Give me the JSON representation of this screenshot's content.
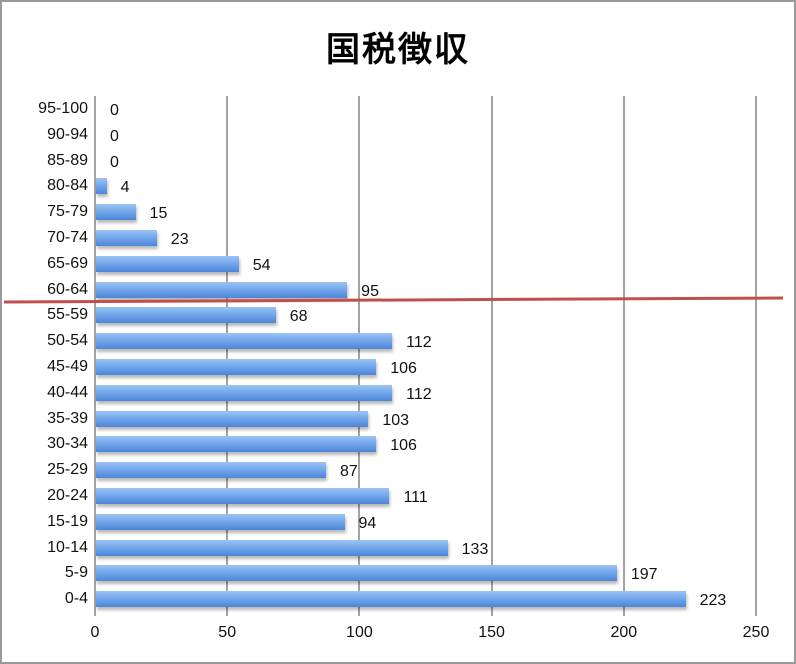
{
  "chart_data": {
    "type": "bar",
    "orientation": "horizontal",
    "title": "国税徴収",
    "xlabel": "",
    "ylabel": "",
    "xlim": [
      0,
      250
    ],
    "x_ticks": [
      0,
      50,
      100,
      150,
      200,
      250
    ],
    "grid": "vertical",
    "legend": "none",
    "data_labels": true,
    "categories": [
      "0-4",
      "5-9",
      "10-14",
      "15-19",
      "20-24",
      "25-29",
      "30-34",
      "35-39",
      "40-44",
      "45-49",
      "50-54",
      "55-59",
      "60-64",
      "65-69",
      "70-74",
      "75-79",
      "80-84",
      "85-89",
      "90-94",
      "95-100"
    ],
    "values": [
      223,
      197,
      133,
      94,
      111,
      87,
      106,
      103,
      112,
      106,
      112,
      68,
      95,
      54,
      23,
      15,
      4,
      0,
      0,
      0
    ],
    "bar_color": "#5b93e0",
    "annotations": [
      {
        "type": "horizontal-line",
        "color": "#c0504d",
        "position": "between 60-64 and 55-59",
        "description": "red divider line"
      }
    ]
  },
  "colors": {
    "bar": "#5b93e0",
    "grid": "#a3a3a3",
    "divider": "#c0504d",
    "frame": "#9a9a9a"
  }
}
